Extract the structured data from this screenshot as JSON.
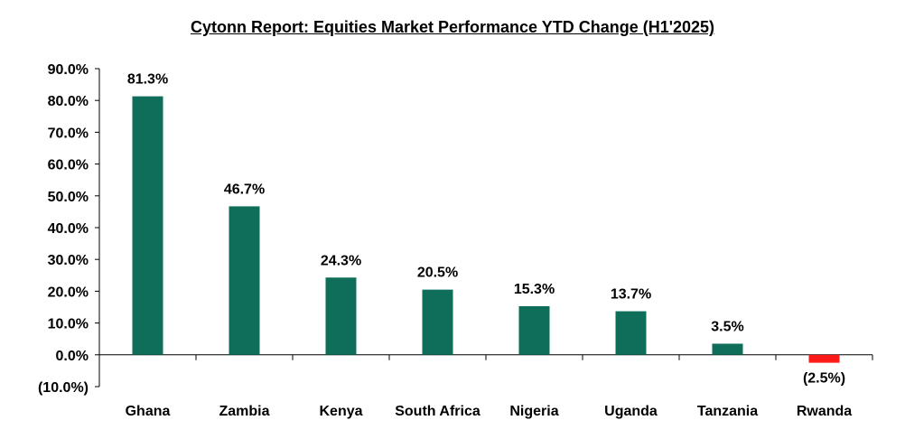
{
  "chart_data": {
    "type": "bar",
    "title": "Cytonn Report: Equities Market Performance YTD Change (H1'2025)",
    "categories": [
      "Ghana",
      "Zambia",
      "Kenya",
      "South Africa",
      "Nigeria",
      "Uganda",
      "Tanzania",
      "Rwanda"
    ],
    "values": [
      81.3,
      46.7,
      24.3,
      20.5,
      15.3,
      13.7,
      3.5,
      -2.5
    ],
    "data_labels": [
      "81.3%",
      "46.7%",
      "24.3%",
      "20.5%",
      "15.3%",
      "13.7%",
      "3.5%",
      "(2.5%)"
    ],
    "ylim": [
      -10,
      90
    ],
    "yticks": [
      90,
      80,
      70,
      60,
      50,
      40,
      30,
      20,
      10,
      0,
      -10
    ],
    "ytick_labels": [
      "90.0%",
      "80.0%",
      "70.0%",
      "60.0%",
      "50.0%",
      "40.0%",
      "30.0%",
      "20.0%",
      "10.0%",
      "0.0%",
      "(10.0%)"
    ],
    "xlabel": "",
    "ylabel": "",
    "grid": false,
    "legend": "none",
    "colors": {
      "positive": "#0f6e5a",
      "negative": "#ff1a1a",
      "axis": "#000000",
      "text": "#000000"
    }
  }
}
